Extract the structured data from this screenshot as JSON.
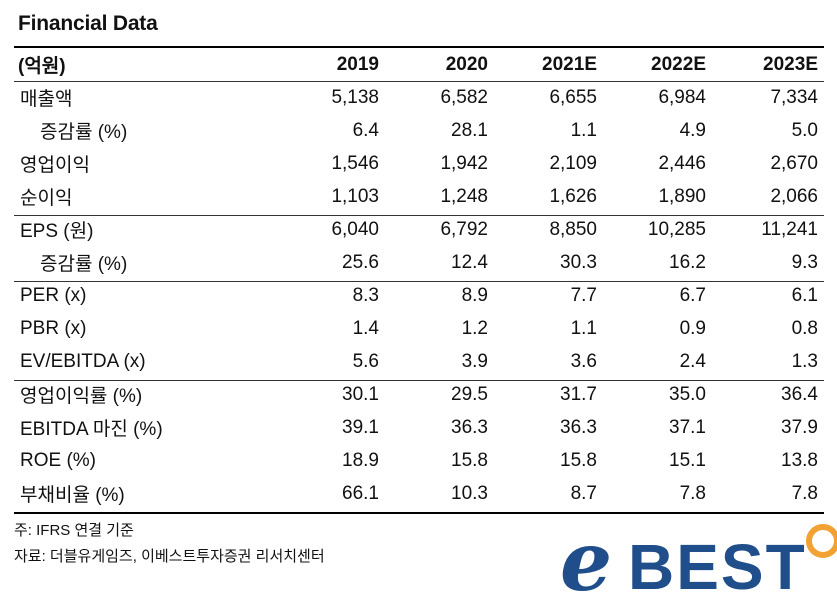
{
  "title": "Financial Data",
  "table": {
    "unit_label": "(억원)",
    "years": [
      "2019",
      "2020",
      "2021E",
      "2022E",
      "2023E"
    ],
    "rows": [
      {
        "label": "매출액",
        "sub": false,
        "values": [
          "5,138",
          "6,582",
          "6,655",
          "6,984",
          "7,334"
        ]
      },
      {
        "label": "증감률 (%)",
        "sub": true,
        "values": [
          "6.4",
          "28.1",
          "1.1",
          "4.9",
          "5.0"
        ]
      },
      {
        "label": "영업이익",
        "sub": false,
        "values": [
          "1,546",
          "1,942",
          "2,109",
          "2,446",
          "2,670"
        ]
      },
      {
        "label": "순이익",
        "sub": false,
        "values": [
          "1,103",
          "1,248",
          "1,626",
          "1,890",
          "2,066"
        ]
      },
      {
        "label": "EPS (원)",
        "sub": false,
        "values": [
          "6,040",
          "6,792",
          "8,850",
          "10,285",
          "11,241"
        ]
      },
      {
        "label": "증감률 (%)",
        "sub": true,
        "values": [
          "25.6",
          "12.4",
          "30.3",
          "16.2",
          "9.3"
        ]
      },
      {
        "label": "PER (x)",
        "sub": false,
        "values": [
          "8.3",
          "8.9",
          "7.7",
          "6.7",
          "6.1"
        ]
      },
      {
        "label": "PBR (x)",
        "sub": false,
        "values": [
          "1.4",
          "1.2",
          "1.1",
          "0.9",
          "0.8"
        ]
      },
      {
        "label": "EV/EBITDA (x)",
        "sub": false,
        "values": [
          "5.6",
          "3.9",
          "3.6",
          "2.4",
          "1.3"
        ]
      },
      {
        "label": "영업이익률 (%)",
        "sub": false,
        "values": [
          "30.1",
          "29.5",
          "31.7",
          "35.0",
          "36.4"
        ]
      },
      {
        "label": "EBITDA 마진 (%)",
        "sub": false,
        "values": [
          "39.1",
          "36.3",
          "36.3",
          "37.1",
          "37.9"
        ]
      },
      {
        "label": "ROE (%)",
        "sub": false,
        "values": [
          "18.9",
          "15.8",
          "15.8",
          "15.1",
          "13.8"
        ]
      },
      {
        "label": "부채비율 (%)",
        "sub": false,
        "values": [
          "66.1",
          "10.3",
          "8.7",
          "7.8",
          "7.8"
        ]
      }
    ]
  },
  "notes": {
    "basis": "주: IFRS 연결 기준",
    "source": "자료: 더블유게임즈, 이베스트투자증권 리서치센터"
  },
  "logo": {
    "text_e": "e",
    "text_best": "BEST"
  },
  "colors": {
    "logo_blue": "#1f4e8a",
    "logo_orange": "#f2a233"
  }
}
